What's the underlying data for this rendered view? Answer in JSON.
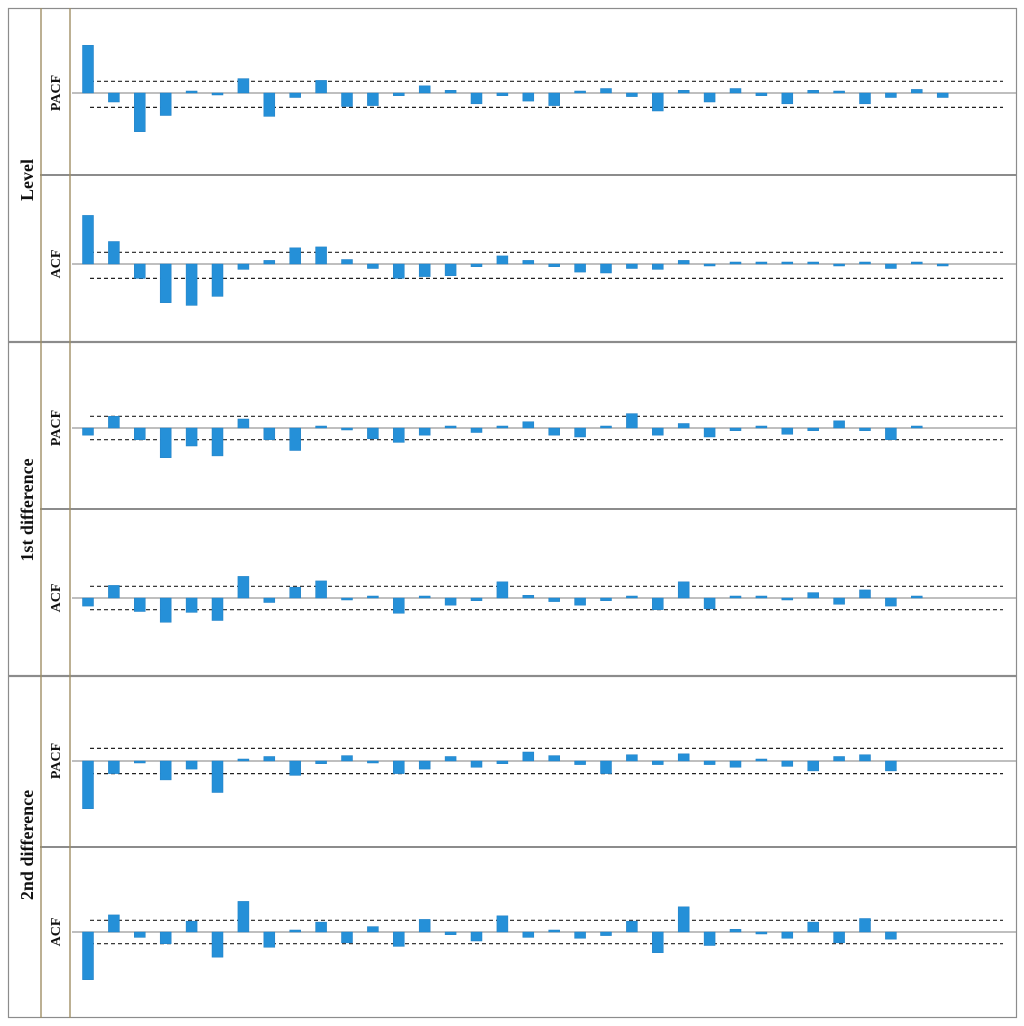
{
  "colors": {
    "bar": "#2590d8",
    "bar_edge": "#1f7fc4",
    "zero_line": "#999999",
    "conf_line": "#222222",
    "frame": "#8c8c8c",
    "label_divider": "#9f8f65"
  },
  "chart_data": [
    {
      "type": "bar",
      "group": "Level",
      "title": "PACF",
      "ylim": [
        -0.62,
        0.55
      ],
      "conf_upper": 0.13,
      "conf_lower": -0.16,
      "values": [
        0.53,
        -0.1,
        -0.43,
        -0.25,
        0.02,
        -0.02,
        0.16,
        -0.26,
        -0.05,
        0.14,
        -0.15,
        -0.14,
        -0.03,
        0.08,
        0.03,
        -0.12,
        -0.03,
        -0.09,
        -0.14,
        0.02,
        0.05,
        -0.04,
        -0.2,
        0.03,
        -0.1,
        0.05,
        -0.03,
        -0.12,
        0.03,
        0.02,
        -0.12,
        -0.05,
        0.04,
        -0.05
      ]
    },
    {
      "type": "bar",
      "group": "Level",
      "title": "ACF",
      "ylim": [
        -0.85,
        0.55
      ],
      "conf_upper": 0.13,
      "conf_lower": -0.16,
      "values": [
        0.54,
        0.25,
        -0.16,
        -0.43,
        -0.46,
        -0.36,
        -0.06,
        0.04,
        0.18,
        0.19,
        0.05,
        -0.05,
        -0.16,
        -0.14,
        -0.13,
        -0.03,
        0.09,
        0.04,
        -0.03,
        -0.09,
        -0.1,
        -0.05,
        -0.06,
        0.04,
        -0.02,
        0.02,
        0.02,
        0.02,
        0.02,
        -0.02,
        0.02,
        -0.05,
        0.02,
        -0.02
      ]
    },
    {
      "type": "bar",
      "group": "1st difference",
      "title": "PACF",
      "ylim": [
        -0.85,
        0.55
      ],
      "conf_upper": 0.13,
      "conf_lower": -0.13,
      "values": [
        -0.08,
        0.13,
        -0.13,
        -0.33,
        -0.2,
        -0.31,
        0.1,
        -0.13,
        -0.25,
        0.02,
        -0.02,
        -0.12,
        -0.16,
        -0.08,
        0.02,
        -0.05,
        0.02,
        0.07,
        -0.08,
        -0.1,
        0.02,
        0.16,
        -0.08,
        0.05,
        -0.1,
        -0.03,
        0.02,
        -0.07,
        -0.03,
        0.08,
        -0.03,
        -0.13,
        0.02
      ]
    },
    {
      "type": "bar",
      "group": "1st difference",
      "title": "ACF",
      "ylim": [
        -0.85,
        0.55
      ],
      "conf_upper": 0.13,
      "conf_lower": -0.13,
      "values": [
        -0.09,
        0.14,
        -0.15,
        -0.27,
        -0.16,
        -0.25,
        0.24,
        -0.05,
        0.12,
        0.19,
        -0.02,
        0.02,
        -0.17,
        0.02,
        -0.08,
        -0.03,
        0.18,
        0.03,
        -0.04,
        -0.08,
        -0.03,
        0.02,
        -0.13,
        0.18,
        -0.12,
        0.02,
        0.02,
        -0.02,
        0.06,
        -0.07,
        0.09,
        -0.09,
        0.02
      ]
    },
    {
      "type": "bar",
      "group": "2nd difference",
      "title": "PACF",
      "ylim": [
        -0.85,
        0.55
      ],
      "conf_upper": 0.14,
      "conf_lower": -0.14,
      "values": [
        -0.53,
        -0.14,
        -0.02,
        -0.21,
        -0.09,
        -0.35,
        0.02,
        0.05,
        -0.16,
        -0.03,
        0.06,
        -0.02,
        -0.14,
        -0.09,
        0.05,
        -0.07,
        -0.03,
        0.1,
        0.06,
        -0.04,
        -0.14,
        0.07,
        -0.04,
        0.08,
        -0.04,
        -0.07,
        0.02,
        -0.06,
        -0.11,
        0.05,
        0.07,
        -0.11
      ]
    },
    {
      "type": "bar",
      "group": "2nd difference",
      "title": "ACF",
      "ylim": [
        -0.85,
        0.55
      ],
      "conf_upper": 0.13,
      "conf_lower": -0.13,
      "values": [
        -0.53,
        0.19,
        -0.06,
        -0.13,
        0.12,
        -0.28,
        0.34,
        -0.17,
        0.02,
        0.11,
        -0.12,
        0.06,
        -0.16,
        0.14,
        -0.03,
        -0.1,
        0.18,
        -0.06,
        0.02,
        -0.07,
        -0.04,
        0.12,
        -0.23,
        0.28,
        -0.15,
        0.03,
        -0.02,
        -0.07,
        0.11,
        -0.12,
        0.15,
        -0.08
      ]
    }
  ]
}
